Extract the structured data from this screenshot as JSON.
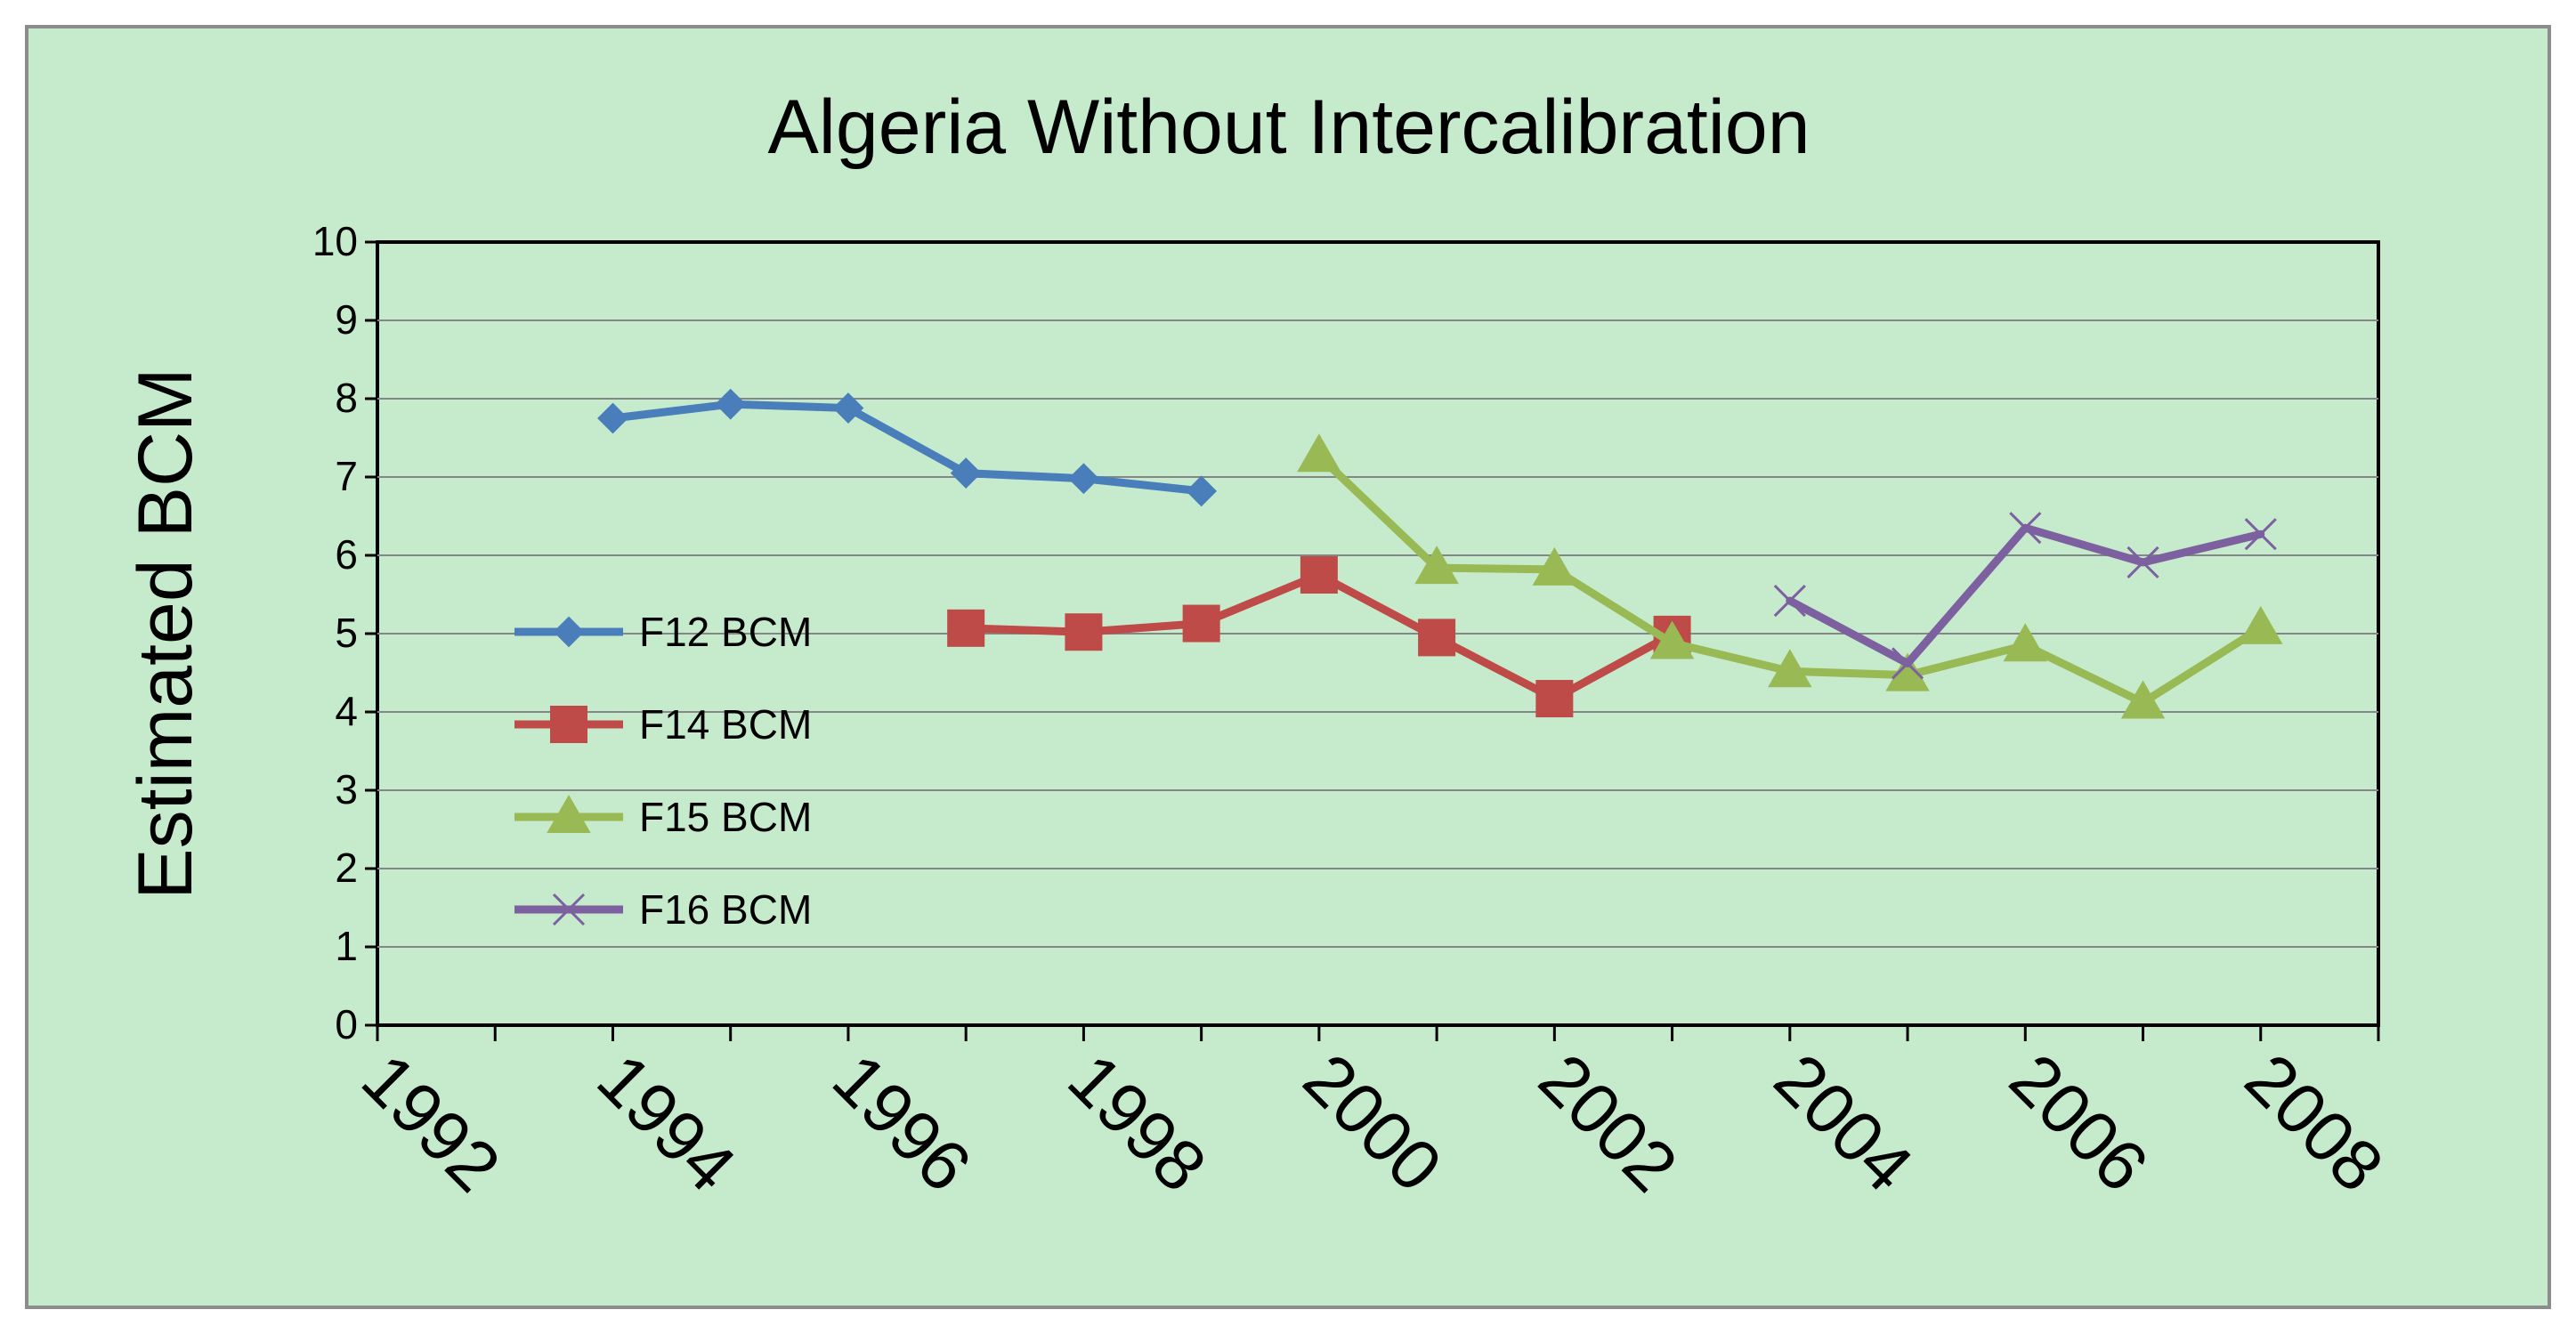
{
  "chart_data": {
    "type": "line",
    "title": "Algeria Without Intercalibration",
    "xlabel": "",
    "ylabel": "Estimated BCM",
    "xlim": [
      1992,
      2009
    ],
    "ylim": [
      0,
      10
    ],
    "x_tick_labels": [
      "1992",
      "1994",
      "1996",
      "1998",
      "2000",
      "2002",
      "2004",
      "2006",
      "2008"
    ],
    "y_tick_labels": [
      "0",
      "1",
      "2",
      "3",
      "4",
      "5",
      "6",
      "7",
      "8",
      "9",
      "10"
    ],
    "grid": "horizontal",
    "legend_position": "left-inside",
    "series": [
      {
        "name": "F12 BCM",
        "color": "#4a7ebb",
        "marker": "diamond",
        "x": [
          1994,
          1995,
          1996,
          1997,
          1998,
          1999
        ],
        "y": [
          7.75,
          7.93,
          7.88,
          7.05,
          6.98,
          6.82
        ]
      },
      {
        "name": "F14 BCM",
        "color": "#be4b48",
        "marker": "square",
        "x": [
          1997,
          1998,
          1999,
          2000,
          2001,
          2002,
          2003
        ],
        "y": [
          5.07,
          5.02,
          5.13,
          5.75,
          4.95,
          4.17,
          4.99
        ]
      },
      {
        "name": "F15 BCM",
        "color": "#98b954",
        "marker": "triangle",
        "x": [
          2000,
          2001,
          2002,
          2003,
          2004,
          2005,
          2006,
          2007,
          2008
        ],
        "y": [
          7.27,
          5.84,
          5.82,
          4.88,
          4.52,
          4.47,
          4.85,
          4.12,
          5.07
        ]
      },
      {
        "name": "F16 BCM",
        "color": "#7d60a0",
        "marker": "x",
        "x": [
          2004,
          2005,
          2006,
          2007,
          2008
        ],
        "y": [
          5.42,
          4.62,
          6.35,
          5.91,
          6.27
        ]
      }
    ]
  }
}
